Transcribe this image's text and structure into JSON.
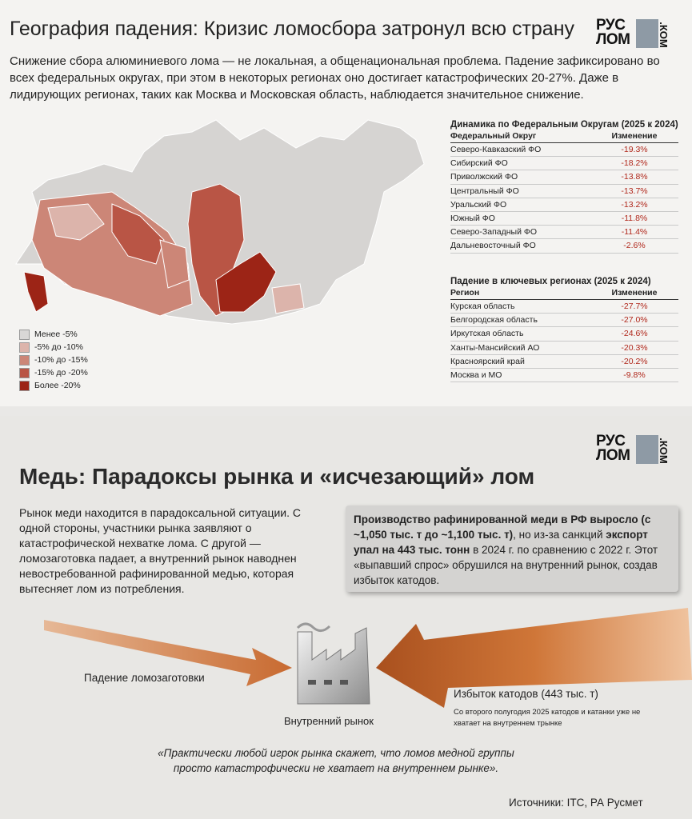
{
  "section1": {
    "title": "География падения: Кризис ломосбора затронул всю страну",
    "logo": {
      "line1": "РУС",
      "line2": "ЛОМ",
      "suffix": ".КОМ"
    },
    "intro": "Снижение сбора алюминиевого лома — не локальная, а общенациональная проблема. Падение зафиксировано во всех федеральных округах, при этом в некоторых регионах оно достигает катастрофических 20-27%. Даже в лидирующих регионах, таких как Москва и Московская область, наблюдается значительное снижение.",
    "legend": [
      {
        "label": "Менее -5%",
        "color": "#d9d7d6"
      },
      {
        "label": "-5% до -10%",
        "color": "#dcb4ab"
      },
      {
        "label": "-10% до -15%",
        "color": "#cc8677"
      },
      {
        "label": "-15% до -20%",
        "color": "#b95545"
      },
      {
        "label": "Более -20%",
        "color": "#9c2416"
      }
    ],
    "districts_table": {
      "title": "Динамика по Федеральным Округам (2025 к 2024)",
      "headers": [
        "Федеральный Округ",
        "Изменение"
      ],
      "rows": [
        [
          "Северо-Кавказский ФО",
          "-19.3%"
        ],
        [
          "Сибирский ФО",
          "-18.2%"
        ],
        [
          "Приволжский ФО",
          "-13.8%"
        ],
        [
          "Центральный ФО",
          "-13.7%"
        ],
        [
          "Уральский ФО",
          "-13.2%"
        ],
        [
          "Южный ФО",
          "-11.8%"
        ],
        [
          "Северо-Западный ФО",
          "-11.4%"
        ],
        [
          "Дальневосточный ФО",
          "-2.6%"
        ]
      ]
    },
    "regions_table": {
      "title": "Падение в ключевых регионах (2025 к 2024)",
      "headers": [
        "Регион",
        "Изменение"
      ],
      "rows": [
        [
          "Курская область",
          "-27.7%"
        ],
        [
          "Белгородская область",
          "-27.0%"
        ],
        [
          "Иркутская область",
          "-24.6%"
        ],
        [
          "Ханты-Мансийский АО",
          "-20.3%"
        ],
        [
          "Красноярский край",
          "-20.2%"
        ],
        [
          "Москва и МО",
          "-9.8%"
        ]
      ]
    }
  },
  "section2": {
    "logo": {
      "line1": "РУС",
      "line2": "ЛОМ",
      "suffix": ".КОМ"
    },
    "title": "Медь: Парадоксы рынка и «исчезающий» лом",
    "body": "Рынок меди находится в парадоксальной ситуации. С одной стороны, участники рынка заявляют о катастрофической нехватке лома. С другой — ломозаготовка падает, а внутренний рынок наводнен невостребованной рафинированной медью, которая вытесняет лом из потребления.",
    "callout": [
      {
        "text": "Производство рафинированной меди в РФ выросло (с ~1,050 тыс. т до ~1,100 тыс. т)",
        "bold": true
      },
      {
        "text": ", но из-за санкций ",
        "bold": false
      },
      {
        "text": "экспорт упал на 443 тыс. тонн",
        "bold": true
      },
      {
        "text": " в 2024 г. по сравнению с 2022 г. Этот «выпавший спрос» обрушился на внутренний рынок, создав избыток катодов.",
        "bold": false
      }
    ],
    "left_arrow_label": "Падение ломозаготовки",
    "factory_label": "Внутренний рынок",
    "right_arrow_label": "Избыток катодов (443 тыс. т)",
    "right_note": "Со второго полугодия 2025 катодов и катанки уже не хватает на внутреннем трынке",
    "quote": "«Практически любой игрок рынка скажет, что ломов медной группы просто катастрофически не хватает на внутреннем рынке».",
    "sources": "Источники: ITC, РА Русмет"
  }
}
